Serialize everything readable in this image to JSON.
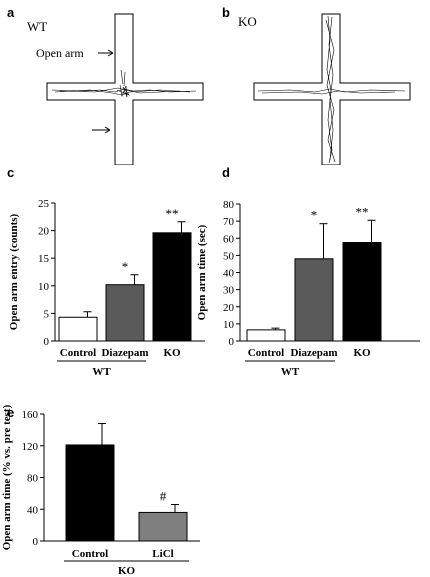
{
  "panels": {
    "a": {
      "label": "a",
      "title": "WT",
      "annotation": "Open arm"
    },
    "b": {
      "label": "b",
      "title": "KO"
    },
    "c": {
      "label": "c"
    },
    "d": {
      "label": "d"
    },
    "e": {
      "label": "e"
    }
  },
  "chart_data": [
    {
      "id": "c",
      "type": "bar",
      "categories": [
        "Control",
        "Diazepam",
        "KO"
      ],
      "values": [
        4.3,
        10.2,
        19.6
      ],
      "errors": [
        1.0,
        1.8,
        2.0
      ],
      "significance": [
        "",
        "*",
        "**"
      ],
      "bar_colors": [
        "#ffffff",
        "#5a5a5a",
        "#000000"
      ],
      "ylabel": "Open arm entry (counts)",
      "ylim": [
        0,
        25
      ],
      "yticks": [
        0,
        5,
        10,
        15,
        20,
        25
      ],
      "group_label": "WT",
      "group_span": [
        0,
        1
      ]
    },
    {
      "id": "d",
      "type": "bar",
      "categories": [
        "Control",
        "Diazepam",
        "KO"
      ],
      "values": [
        6.5,
        48.0,
        57.5
      ],
      "errors": [
        1.0,
        20.5,
        13.0
      ],
      "significance": [
        "",
        "*",
        "**"
      ],
      "bar_colors": [
        "#ffffff",
        "#5a5a5a",
        "#000000"
      ],
      "ylabel": "Open arm time (sec)",
      "ylim": [
        0,
        80
      ],
      "yticks": [
        0,
        10,
        20,
        30,
        40,
        50,
        60,
        70,
        80
      ],
      "group_label": "WT",
      "group_span": [
        0,
        1
      ]
    },
    {
      "id": "e",
      "type": "bar",
      "categories": [
        "Control",
        "LiCl"
      ],
      "values": [
        121,
        36
      ],
      "errors": [
        27,
        10
      ],
      "significance": [
        "",
        "#"
      ],
      "bar_colors": [
        "#000000",
        "#7f7f7f"
      ],
      "ylabel": "Open arm time (% vs. pre test)",
      "ylim": [
        0,
        160
      ],
      "yticks": [
        0,
        40,
        80,
        120,
        160
      ],
      "group_label": "KO",
      "group_span": [
        0,
        1
      ]
    }
  ]
}
